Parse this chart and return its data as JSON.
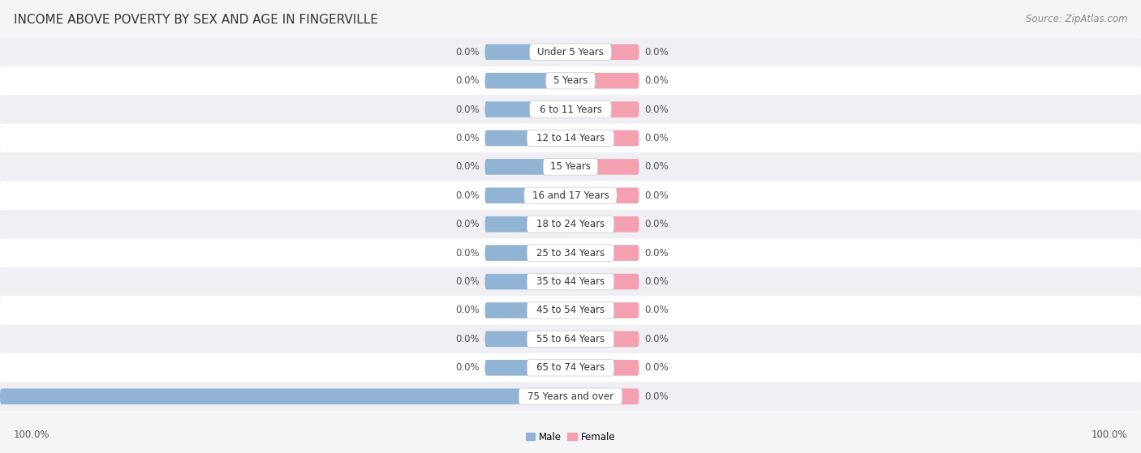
{
  "title": "INCOME ABOVE POVERTY BY SEX AND AGE IN FINGERVILLE",
  "source": "Source: ZipAtlas.com",
  "categories": [
    "Under 5 Years",
    "5 Years",
    "6 to 11 Years",
    "12 to 14 Years",
    "15 Years",
    "16 and 17 Years",
    "18 to 24 Years",
    "25 to 34 Years",
    "35 to 44 Years",
    "45 to 54 Years",
    "55 to 64 Years",
    "65 to 74 Years",
    "75 Years and over"
  ],
  "male_values": [
    0.0,
    0.0,
    0.0,
    0.0,
    0.0,
    0.0,
    0.0,
    0.0,
    0.0,
    0.0,
    0.0,
    0.0,
    100.0
  ],
  "female_values": [
    0.0,
    0.0,
    0.0,
    0.0,
    0.0,
    0.0,
    0.0,
    0.0,
    0.0,
    0.0,
    0.0,
    0.0,
    0.0
  ],
  "male_color": "#92b4d4",
  "female_color": "#f4a0b0",
  "row_odd_color": "#f0f0f4",
  "row_even_color": "#ffffff",
  "bar_bg_color": "#e2e2ea",
  "label_bg_color": "#ffffff",
  "xlim": 100.0,
  "stub_value": 15.0,
  "female_stub_value": 12.0,
  "label_fontsize": 8.5,
  "title_fontsize": 11,
  "source_fontsize": 8.5,
  "value_fontsize": 8.5,
  "category_fontsize": 8.5,
  "background_color": "#f5f5f8"
}
